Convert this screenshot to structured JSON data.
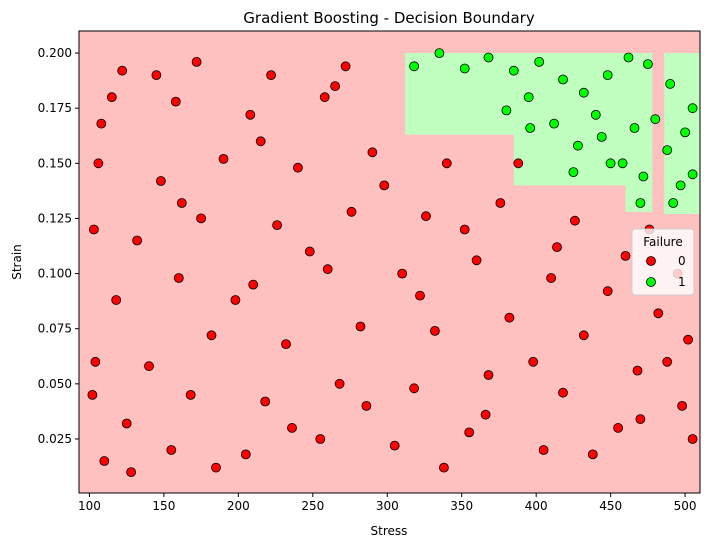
{
  "chart_data": {
    "type": "scatter",
    "title": "Gradient Boosting - Decision Boundary",
    "xlabel": "Stress",
    "ylabel": "Strain",
    "xlim": [
      93,
      510
    ],
    "ylim": [
      0.0005,
      0.21
    ],
    "x_ticks": [
      100,
      150,
      200,
      250,
      300,
      350,
      400,
      450,
      500
    ],
    "x_tick_labels": [
      "100",
      "150",
      "200",
      "250",
      "300",
      "350",
      "400",
      "450",
      "500"
    ],
    "y_ticks": [
      0.025,
      0.05,
      0.075,
      0.1,
      0.125,
      0.15,
      0.175,
      0.2
    ],
    "y_tick_labels": [
      "0.025",
      "0.050",
      "0.075",
      "0.100",
      "0.125",
      "0.150",
      "0.175",
      "0.200"
    ],
    "grid": false,
    "legend": {
      "title": "Failure",
      "position": "right",
      "entries": [
        {
          "label": "0",
          "color": "#ff0000"
        },
        {
          "label": "1",
          "color": "#00ff00"
        }
      ]
    },
    "background_region": {
      "class": "0",
      "color": "#ffc0c0"
    },
    "decision_region_class1": {
      "class": "1",
      "color": "#c0ffc0",
      "polygons": [
        [
          [
            312,
            0.2
          ],
          [
            478,
            0.2
          ],
          [
            478,
            0.128
          ],
          [
            460,
            0.128
          ],
          [
            460,
            0.14
          ],
          [
            385,
            0.14
          ],
          [
            385,
            0.163
          ],
          [
            312,
            0.163
          ]
        ],
        [
          [
            486,
            0.2
          ],
          [
            510,
            0.2
          ],
          [
            510,
            0.127
          ],
          [
            486,
            0.127
          ]
        ]
      ]
    },
    "series": [
      {
        "name": "0",
        "color": "#ff0000",
        "points": [
          [
            110,
            0.015
          ],
          [
            125,
            0.032
          ],
          [
            140,
            0.058
          ],
          [
            118,
            0.088
          ],
          [
            132,
            0.115
          ],
          [
            148,
            0.142
          ],
          [
            108,
            0.168
          ],
          [
            122,
            0.192
          ],
          [
            155,
            0.02
          ],
          [
            168,
            0.045
          ],
          [
            182,
            0.072
          ],
          [
            160,
            0.098
          ],
          [
            175,
            0.125
          ],
          [
            190,
            0.152
          ],
          [
            158,
            0.178
          ],
          [
            172,
            0.196
          ],
          [
            205,
            0.018
          ],
          [
            218,
            0.042
          ],
          [
            232,
            0.068
          ],
          [
            210,
            0.095
          ],
          [
            226,
            0.122
          ],
          [
            240,
            0.148
          ],
          [
            208,
            0.172
          ],
          [
            222,
            0.19
          ],
          [
            255,
            0.025
          ],
          [
            268,
            0.05
          ],
          [
            282,
            0.076
          ],
          [
            260,
            0.102
          ],
          [
            276,
            0.128
          ],
          [
            290,
            0.155
          ],
          [
            258,
            0.18
          ],
          [
            272,
            0.194
          ],
          [
            305,
            0.022
          ],
          [
            318,
            0.048
          ],
          [
            332,
            0.074
          ],
          [
            310,
            0.1
          ],
          [
            326,
            0.126
          ],
          [
            340,
            0.15
          ],
          [
            355,
            0.028
          ],
          [
            368,
            0.054
          ],
          [
            382,
            0.08
          ],
          [
            360,
            0.106
          ],
          [
            376,
            0.132
          ],
          [
            405,
            0.02
          ],
          [
            418,
            0.046
          ],
          [
            432,
            0.072
          ],
          [
            410,
            0.098
          ],
          [
            426,
            0.124
          ],
          [
            455,
            0.03
          ],
          [
            468,
            0.056
          ],
          [
            482,
            0.082
          ],
          [
            460,
            0.108
          ],
          [
            476,
            0.12
          ],
          [
            498,
            0.04
          ],
          [
            502,
            0.07
          ],
          [
            495,
            0.1
          ],
          [
            102,
            0.045
          ],
          [
            103,
            0.12
          ],
          [
            104,
            0.06
          ],
          [
            106,
            0.15
          ],
          [
            115,
            0.18
          ],
          [
            128,
            0.01
          ],
          [
            145,
            0.19
          ],
          [
            162,
            0.132
          ],
          [
            185,
            0.012
          ],
          [
            198,
            0.088
          ],
          [
            215,
            0.16
          ],
          [
            236,
            0.03
          ],
          [
            248,
            0.11
          ],
          [
            265,
            0.185
          ],
          [
            286,
            0.04
          ],
          [
            298,
            0.14
          ],
          [
            322,
            0.09
          ],
          [
            338,
            0.012
          ],
          [
            352,
            0.12
          ],
          [
            366,
            0.036
          ],
          [
            388,
            0.15
          ],
          [
            398,
            0.06
          ],
          [
            414,
            0.112
          ],
          [
            438,
            0.018
          ],
          [
            448,
            0.092
          ],
          [
            470,
            0.034
          ],
          [
            488,
            0.06
          ],
          [
            505,
            0.025
          ]
        ]
      },
      {
        "name": "1",
        "color": "#00ff00",
        "points": [
          [
            318,
            0.194
          ],
          [
            335,
            0.2
          ],
          [
            352,
            0.193
          ],
          [
            368,
            0.198
          ],
          [
            385,
            0.192
          ],
          [
            402,
            0.196
          ],
          [
            418,
            0.188
          ],
          [
            432,
            0.182
          ],
          [
            448,
            0.19
          ],
          [
            462,
            0.198
          ],
          [
            475,
            0.195
          ],
          [
            490,
            0.186
          ],
          [
            505,
            0.175
          ],
          [
            380,
            0.174
          ],
          [
            396,
            0.166
          ],
          [
            412,
            0.168
          ],
          [
            428,
            0.158
          ],
          [
            444,
            0.162
          ],
          [
            458,
            0.15
          ],
          [
            472,
            0.144
          ],
          [
            488,
            0.156
          ],
          [
            500,
            0.164
          ],
          [
            395,
            0.18
          ],
          [
            440,
            0.172
          ],
          [
            466,
            0.166
          ],
          [
            480,
            0.17
          ],
          [
            497,
            0.14
          ],
          [
            492,
            0.132
          ],
          [
            505,
            0.145
          ],
          [
            425,
            0.146
          ],
          [
            450,
            0.15
          ],
          [
            470,
            0.132
          ]
        ]
      }
    ]
  }
}
